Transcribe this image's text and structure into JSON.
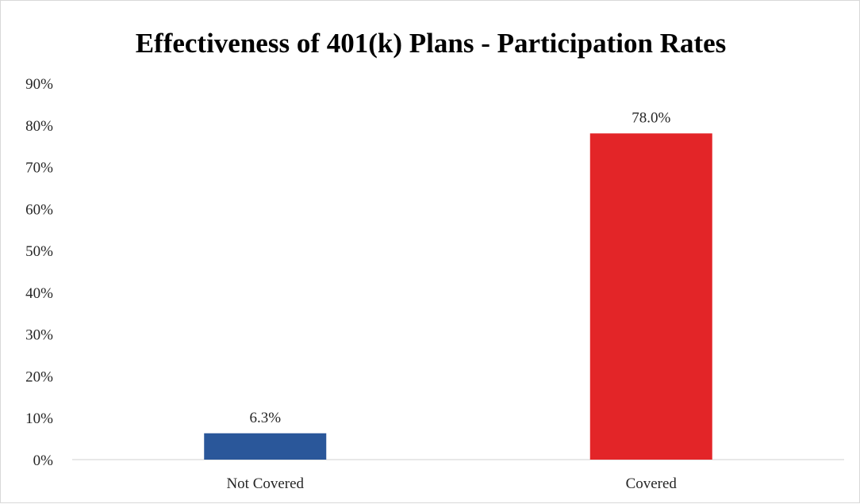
{
  "chart_data": {
    "type": "bar",
    "title": "Effectiveness of 401(k) Plans - Participation Rates",
    "xlabel": "",
    "ylabel": "",
    "categories": [
      "Not Covered",
      "Covered"
    ],
    "values": [
      6.3,
      78.0
    ],
    "data_labels": [
      "6.3%",
      "78.0%"
    ],
    "bar_colors": [
      "#2a579a",
      "#e32528"
    ],
    "ylim": [
      0,
      90
    ],
    "yticks": [
      0,
      10,
      20,
      30,
      40,
      50,
      60,
      70,
      80,
      90
    ],
    "ytick_labels": [
      "0%",
      "10%",
      "20%",
      "30%",
      "40%",
      "50%",
      "60%",
      "70%",
      "80%",
      "90%"
    ],
    "grid": false,
    "legend": "none"
  }
}
